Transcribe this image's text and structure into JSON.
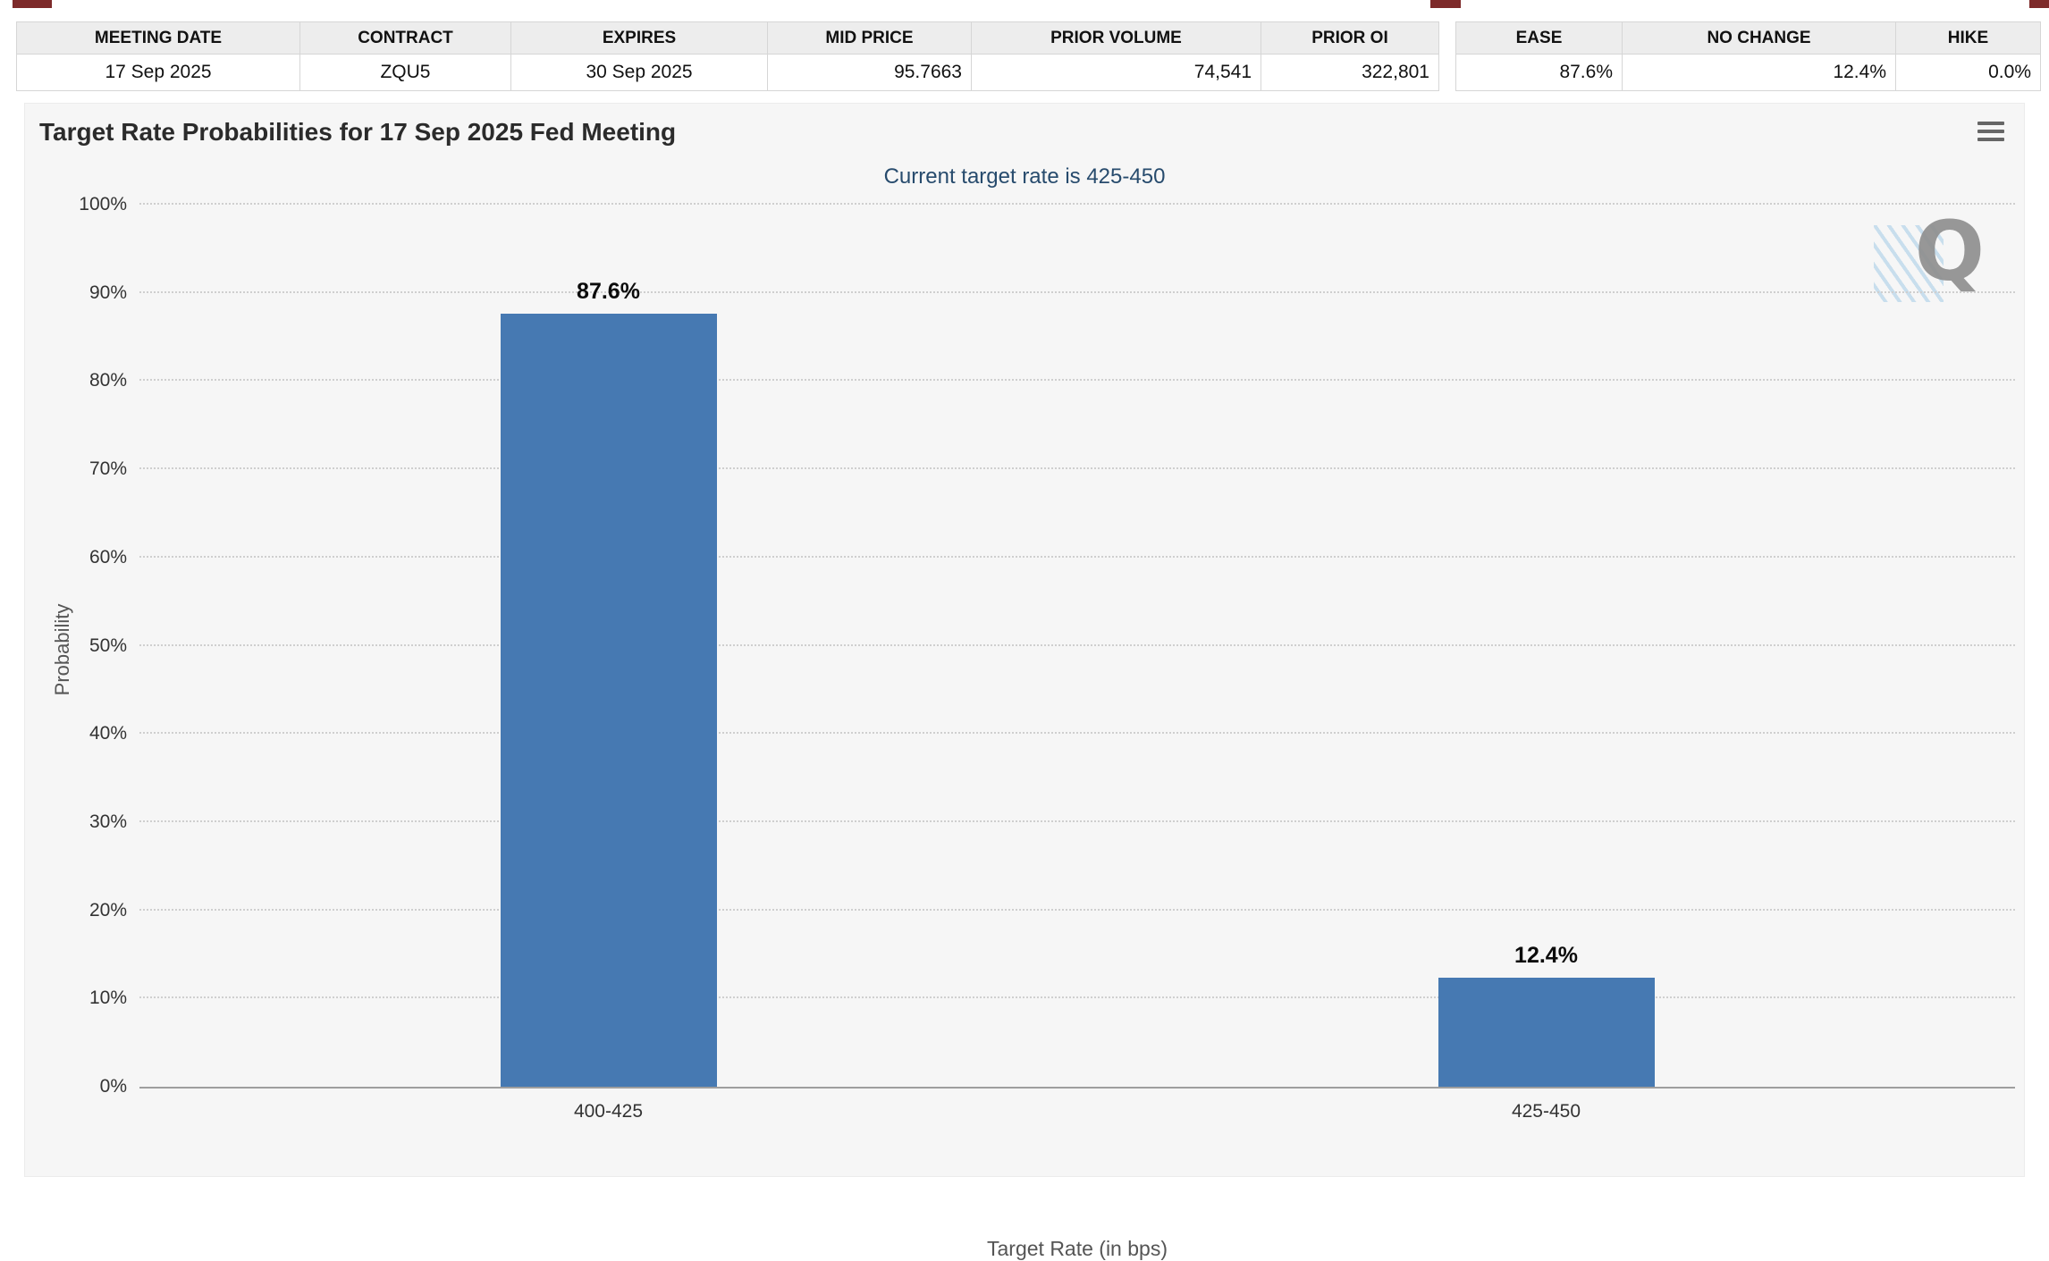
{
  "contract_table": {
    "headers": [
      "MEETING DATE",
      "CONTRACT",
      "EXPIRES",
      "MID PRICE",
      "PRIOR VOLUME",
      "PRIOR OI"
    ],
    "row": [
      "17 Sep 2025",
      "ZQU5",
      "30 Sep 2025",
      "95.7663",
      "74,541",
      "322,801"
    ]
  },
  "probability_table": {
    "headers": [
      "EASE",
      "NO CHANGE",
      "HIKE"
    ],
    "row": [
      "87.6%",
      "12.4%",
      "0.0%"
    ]
  },
  "chart_data": {
    "type": "bar",
    "title": "Target Rate Probabilities for 17 Sep 2025 Fed Meeting",
    "subtitle": "Current target rate is 425-450",
    "categories": [
      "400-425",
      "425-450"
    ],
    "values": [
      87.6,
      12.4
    ],
    "value_labels": [
      "87.6%",
      "12.4%"
    ],
    "xlabel": "Target Rate (in bps)",
    "ylabel": "Probability",
    "ylim": [
      0,
      100
    ],
    "yticks": [
      0,
      10,
      20,
      30,
      40,
      50,
      60,
      70,
      80,
      90,
      100
    ],
    "ytick_suffix": "%",
    "grid": "dotted horizontal gridlines",
    "legend": "none",
    "bar_color": "#4679b2"
  },
  "colors": {
    "bar": "#4679b2",
    "subtitle_text": "#274b6d",
    "chart_background": "#f6f6f6",
    "top_accent": "#7d2a2a",
    "table_header_background": "#ededed"
  },
  "icons": {
    "chart_context_menu": "hamburger-menu-icon"
  },
  "watermark_letter": "Q"
}
